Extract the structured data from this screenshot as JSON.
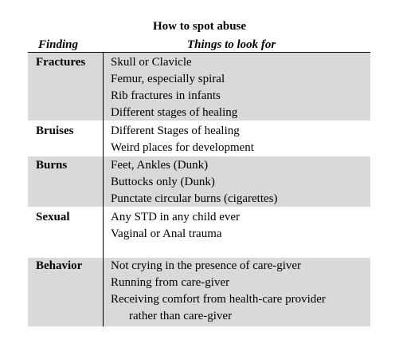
{
  "title": "How to spot abuse",
  "headers": {
    "finding": "Finding",
    "things": "Things to look for"
  },
  "rows": [
    {
      "finding": "Fractures",
      "items": [
        "Skull or Clavicle",
        "Femur, especially spiral",
        "Rib fractures in infants",
        "Different stages of healing"
      ]
    },
    {
      "finding": "Bruises",
      "items": [
        "Different Stages of healing",
        "Weird places for development"
      ]
    },
    {
      "finding": "Burns",
      "items": [
        "Feet, Ankles (Dunk)",
        "Buttocks only (Dunk)",
        "Punctate circular burns (cigarettes)"
      ]
    },
    {
      "finding": "Sexual",
      "items": [
        "Any STD in any child ever",
        "Vaginal or Anal trauma"
      ]
    },
    {
      "finding": "Behavior",
      "items": [
        "Not crying in the presence of care-giver",
        "Running from care-giver",
        "Receiving comfort from health-care provider",
        "rather than care-giver"
      ]
    }
  ]
}
